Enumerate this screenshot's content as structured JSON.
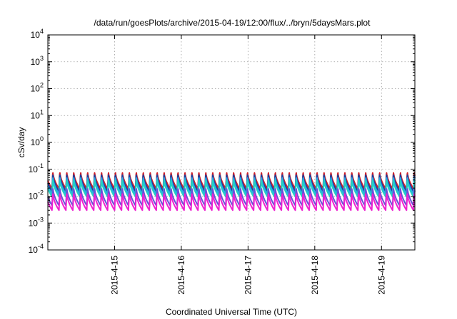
{
  "chart_data": {
    "type": "line",
    "title": "/data/run/goesPlots/archive/2015-04-19/12:00/flux/../bryn/5daysMars.plot",
    "xlabel": "Coordinated Universal Time (UTC)",
    "ylabel": "cSv/day",
    "yscale": "log",
    "ylim": [
      0.0001,
      10000
    ],
    "y_ticks": [
      {
        "value": 0.0001,
        "base": "10",
        "exp": "-4"
      },
      {
        "value": 0.001,
        "base": "10",
        "exp": "-3"
      },
      {
        "value": 0.01,
        "base": "10",
        "exp": "-2"
      },
      {
        "value": 0.1,
        "base": "10",
        "exp": "-1"
      },
      {
        "value": 1,
        "base": "10",
        "exp": "0"
      },
      {
        "value": 10,
        "base": "10",
        "exp": "1"
      },
      {
        "value": 100,
        "base": "10",
        "exp": "2"
      },
      {
        "value": 1000,
        "base": "10",
        "exp": "3"
      },
      {
        "value": 10000,
        "base": "10",
        "exp": "4"
      }
    ],
    "xlim": [
      "2015-04-14 00:00",
      "2015-04-19 12:00"
    ],
    "x_ticks": [
      {
        "value": "2015-04-15 00:00",
        "label": "2015-4-15"
      },
      {
        "value": "2015-04-16 00:00",
        "label": "2015-4-16"
      },
      {
        "value": "2015-04-17 00:00",
        "label": "2015-4-17"
      },
      {
        "value": "2015-04-18 00:00",
        "label": "2015-4-18"
      },
      {
        "value": "2015-04-19 00:00",
        "label": "2015-4-19"
      }
    ],
    "grid": true,
    "legend": "none",
    "periodic_spikes": {
      "period_hours": 2.5,
      "first_spike": "2015-04-14 01:30"
    },
    "series": [
      {
        "color": "#d0202a",
        "peak": 0.085,
        "trough": 0.019
      },
      {
        "color": "#1e3f9e",
        "peak": 0.07,
        "trough": 0.015
      },
      {
        "color": "#2aa7e8",
        "peak": 0.055,
        "trough": 0.012
      },
      {
        "color": "#22d1c3",
        "peak": 0.045,
        "trough": 0.0095
      },
      {
        "color": "#6a4fd8",
        "peak": 0.022,
        "trough": 0.0045
      },
      {
        "color": "#ee22d0",
        "peak": 0.014,
        "trough": 0.003
      }
    ]
  }
}
